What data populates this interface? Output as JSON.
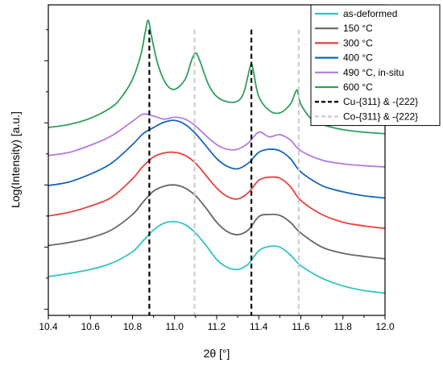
{
  "chart_data": {
    "type": "line",
    "xlabel": "2θ [°]",
    "ylabel": "Log(Intensity) [a.u.]",
    "xlim": [
      10.4,
      12.0
    ],
    "ylim": [
      0,
      1
    ],
    "x_ticks": [
      "10.4",
      "10.6",
      "10.8",
      "11.0",
      "11.2",
      "11.4",
      "11.6",
      "11.8",
      "12.0"
    ],
    "y_tick_labels_shown": false,
    "grid": false,
    "legend_position": "top-right",
    "series": [
      {
        "name": "as-deformed",
        "color": "#2ec4c4",
        "x": [
          10.4,
          10.5,
          10.6,
          10.7,
          10.8,
          10.85,
          10.9,
          10.95,
          11.0,
          11.05,
          11.1,
          11.15,
          11.2,
          11.25,
          11.3,
          11.35,
          11.4,
          11.45,
          11.5,
          11.55,
          11.6,
          11.7,
          11.8,
          11.9,
          12.0
        ],
        "y": [
          0.125,
          0.135,
          0.148,
          0.168,
          0.205,
          0.24,
          0.275,
          0.297,
          0.302,
          0.292,
          0.265,
          0.225,
          0.18,
          0.155,
          0.148,
          0.165,
          0.208,
          0.222,
          0.22,
          0.195,
          0.16,
          0.12,
          0.095,
          0.08,
          0.072
        ]
      },
      {
        "name": "150 °C",
        "color": "#666666",
        "x": [
          10.4,
          10.5,
          10.6,
          10.7,
          10.8,
          10.85,
          10.9,
          10.95,
          11.0,
          11.05,
          11.1,
          11.15,
          11.2,
          11.25,
          11.3,
          11.35,
          11.4,
          11.45,
          11.5,
          11.55,
          11.6,
          11.7,
          11.8,
          11.9,
          12.0
        ],
        "y": [
          0.225,
          0.235,
          0.25,
          0.275,
          0.325,
          0.365,
          0.4,
          0.416,
          0.42,
          0.41,
          0.385,
          0.345,
          0.3,
          0.27,
          0.26,
          0.275,
          0.318,
          0.325,
          0.322,
          0.3,
          0.265,
          0.22,
          0.2,
          0.19,
          0.182
        ]
      },
      {
        "name": "300 °C",
        "color": "#e8403a",
        "x": [
          10.4,
          10.5,
          10.6,
          10.7,
          10.8,
          10.85,
          10.9,
          10.95,
          11.0,
          11.05,
          11.1,
          11.15,
          11.2,
          11.25,
          11.3,
          11.35,
          11.4,
          11.45,
          11.5,
          11.55,
          11.6,
          11.7,
          11.8,
          11.9,
          12.0
        ],
        "y": [
          0.32,
          0.332,
          0.352,
          0.38,
          0.44,
          0.48,
          0.51,
          0.523,
          0.525,
          0.515,
          0.49,
          0.45,
          0.41,
          0.383,
          0.375,
          0.395,
          0.435,
          0.445,
          0.442,
          0.415,
          0.37,
          0.325,
          0.3,
          0.288,
          0.28
        ]
      },
      {
        "name": "400 °C",
        "color": "#1565c0",
        "x": [
          10.4,
          10.5,
          10.6,
          10.7,
          10.8,
          10.85,
          10.9,
          10.95,
          11.0,
          11.05,
          11.1,
          11.15,
          11.2,
          11.25,
          11.3,
          11.35,
          11.4,
          11.45,
          11.5,
          11.55,
          11.6,
          11.7,
          11.8,
          11.9,
          12.0
        ],
        "y": [
          0.418,
          0.43,
          0.455,
          0.49,
          0.55,
          0.585,
          0.605,
          0.622,
          0.628,
          0.615,
          0.585,
          0.545,
          0.505,
          0.48,
          0.472,
          0.49,
          0.525,
          0.535,
          0.53,
          0.505,
          0.462,
          0.418,
          0.398,
          0.385,
          0.378
        ]
      },
      {
        "name": "490 °C, in-situ",
        "color": "#b57ae0",
        "x": [
          10.4,
          10.5,
          10.6,
          10.7,
          10.8,
          10.85,
          10.9,
          10.95,
          11.0,
          11.05,
          11.1,
          11.15,
          11.2,
          11.25,
          11.3,
          11.35,
          11.4,
          11.45,
          11.5,
          11.55,
          11.6,
          11.7,
          11.8,
          11.9,
          12.0
        ],
        "y": [
          0.515,
          0.525,
          0.548,
          0.578,
          0.625,
          0.648,
          0.642,
          0.632,
          0.638,
          0.632,
          0.61,
          0.578,
          0.55,
          0.535,
          0.535,
          0.555,
          0.59,
          0.575,
          0.582,
          0.565,
          0.53,
          0.5,
          0.488,
          0.482,
          0.478
        ]
      },
      {
        "name": "600 °C",
        "color": "#2e9e5e",
        "x": [
          10.4,
          10.5,
          10.6,
          10.7,
          10.75,
          10.8,
          10.84,
          10.86,
          10.875,
          10.89,
          10.92,
          10.96,
          11.0,
          11.05,
          11.08,
          11.1,
          11.12,
          11.16,
          11.2,
          11.25,
          11.3,
          11.33,
          11.355,
          11.365,
          11.375,
          11.4,
          11.45,
          11.5,
          11.55,
          11.575,
          11.585,
          11.6,
          11.65,
          11.7,
          11.8,
          11.9,
          12.0
        ],
        "y": [
          0.605,
          0.615,
          0.635,
          0.67,
          0.705,
          0.76,
          0.84,
          0.91,
          0.95,
          0.9,
          0.81,
          0.745,
          0.728,
          0.76,
          0.82,
          0.845,
          0.82,
          0.745,
          0.705,
          0.688,
          0.69,
          0.72,
          0.79,
          0.81,
          0.785,
          0.705,
          0.66,
          0.652,
          0.68,
          0.72,
          0.722,
          0.68,
          0.632,
          0.615,
          0.598,
          0.59,
          0.585
        ]
      }
    ],
    "reference_lines": [
      {
        "name": "Cu-{311} & -{222}",
        "color": "#000000",
        "style": "dashed",
        "x": [
          10.88,
          11.365
        ]
      },
      {
        "name": "Co-{311} & -{222}",
        "color": "#cccccc",
        "style": "dashed",
        "x": [
          11.095,
          11.59
        ]
      }
    ]
  }
}
